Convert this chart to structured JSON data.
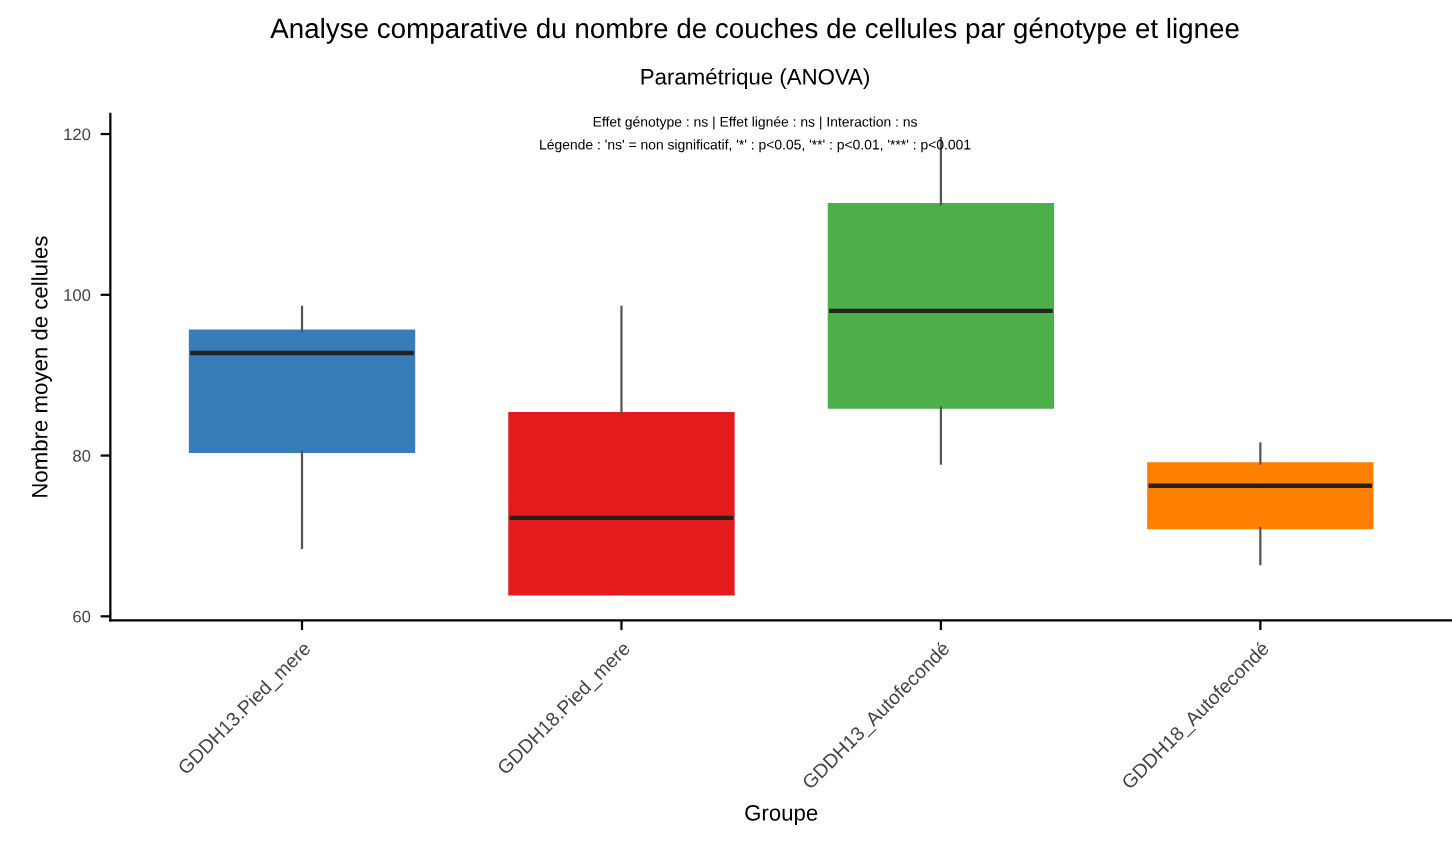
{
  "chart_data": {
    "type": "box",
    "title": "Analyse comparative du nombre de couches de cellules par génotype et lignee",
    "subtitle": "Paramétrique (ANOVA)",
    "annotations": [
      "Effet génotype : ns | Effet lignée : ns | Interaction : ns",
      "Légende : 'ns' = non significatif, '*' : p<0.05, '**' : p<0.01, '***' : p<0.001"
    ],
    "xlabel": "Groupe",
    "ylabel": "Nombre moyen de cellules",
    "categories": [
      "GDDH13.Pied_mere",
      "GDDH18.Pied_mere",
      "GDDH13_Autofecondé",
      "GDDH18_Autofecondé"
    ],
    "colors": [
      "#377eb8",
      "#e41a1c",
      "#4daf4a",
      "#ff7f00"
    ],
    "boxes": [
      {
        "low": 68.5,
        "q1": 80.5,
        "median": 92.75,
        "q3": 95.5,
        "high": 98.5
      },
      {
        "low": 62.75,
        "q1": 62.75,
        "median": 72.25,
        "q3": 85.25,
        "high": 98.5
      },
      {
        "low": 79,
        "q1": 86,
        "median": 98,
        "q3": 111.25,
        "high": 119.5
      },
      {
        "low": 66.5,
        "q1": 71,
        "median": 76.25,
        "q3": 79,
        "high": 81.5
      }
    ],
    "ylim": [
      59.5,
      122.5
    ],
    "yticks": [
      60,
      80,
      100,
      120
    ],
    "grid": false,
    "legend": false
  }
}
